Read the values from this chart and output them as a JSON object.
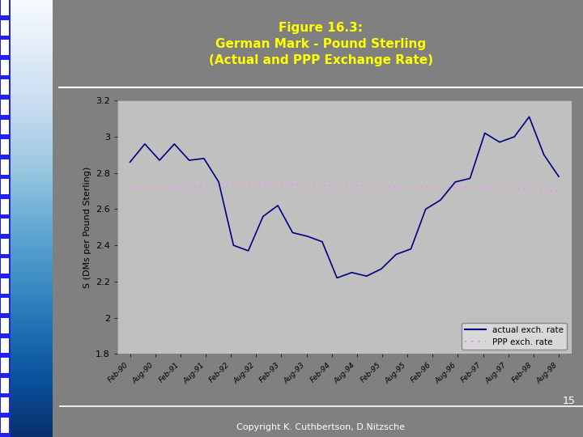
{
  "title": "Figure 16.3:\nGerman Mark - Pound Sterling\n(Actual and PPP Exchange Rate)",
  "ylabel": "S (DMs per Pound Sterling)",
  "background_color": "#808080",
  "plot_bg_color": "#C0C0C0",
  "title_color": "#FFFF00",
  "ylabel_color": "#000000",
  "ylim": [
    1.8,
    3.2
  ],
  "yticks": [
    1.8,
    2.0,
    2.2,
    2.4,
    2.6,
    2.8,
    3.0,
    3.2
  ],
  "actual_color": "#000080",
  "ppp_color": "#FF80FF",
  "copyright_text": "Copyright K. Cuthbertson, D.Nitzsche",
  "page_number": "15",
  "left_strip_color": "#2222EE",
  "x_labels": [
    "Feb-90",
    "Aug-90",
    "Feb-91",
    "Aug-91",
    "Feb-92",
    "Aug-92",
    "Feb-93",
    "Aug-93",
    "Feb-94",
    "Aug-94",
    "Feb-95",
    "Aug-95",
    "Feb-96",
    "Aug-96",
    "Feb-97",
    "Aug-97",
    "Feb-98",
    "Aug-98"
  ],
  "actual_values": [
    2.86,
    2.96,
    2.87,
    2.96,
    2.87,
    2.88,
    2.75,
    2.4,
    2.37,
    2.56,
    2.62,
    2.47,
    2.45,
    2.42,
    2.22,
    2.25,
    2.23,
    2.27,
    2.35,
    2.38,
    2.6,
    2.65,
    2.75,
    2.77,
    3.02,
    2.97,
    3.0,
    3.11,
    2.9,
    2.78
  ],
  "ppp_values": [
    2.72,
    2.72,
    2.72,
    2.72,
    2.72,
    2.73,
    2.74,
    2.74,
    2.74,
    2.74,
    2.74,
    2.74,
    2.73,
    2.73,
    2.73,
    2.73,
    2.73,
    2.72,
    2.72,
    2.72,
    2.72,
    2.72,
    2.72,
    2.72,
    2.72,
    2.71,
    2.71,
    2.71,
    2.7,
    2.7
  ]
}
